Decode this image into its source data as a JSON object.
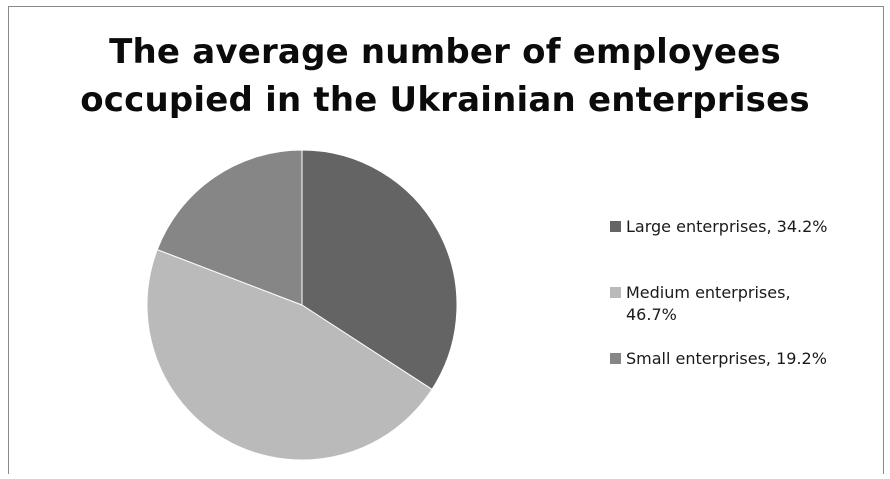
{
  "chart_data": {
    "type": "pie",
    "title_lines": [
      "The average number of employees",
      "occupied in the Ukrainian enterprises"
    ],
    "slices": [
      {
        "label": "Large enterprises, 34.2%",
        "value": 34.2,
        "color": "#646464"
      },
      {
        "label": "Medium enterprises, 46.7%",
        "value": 46.7,
        "color": "#bababa"
      },
      {
        "label": "Small enterprises, 19.2%",
        "value": 19.2,
        "color": "#868686"
      }
    ],
    "legend_position": "right"
  },
  "legend": {
    "items": [
      {
        "lines": [
          "Large enterprises, 34.2%"
        ]
      },
      {
        "lines": [
          "Medium enterprises,",
          "46.7%"
        ]
      },
      {
        "lines": [
          "Small enterprises, 19.2%"
        ]
      }
    ]
  }
}
